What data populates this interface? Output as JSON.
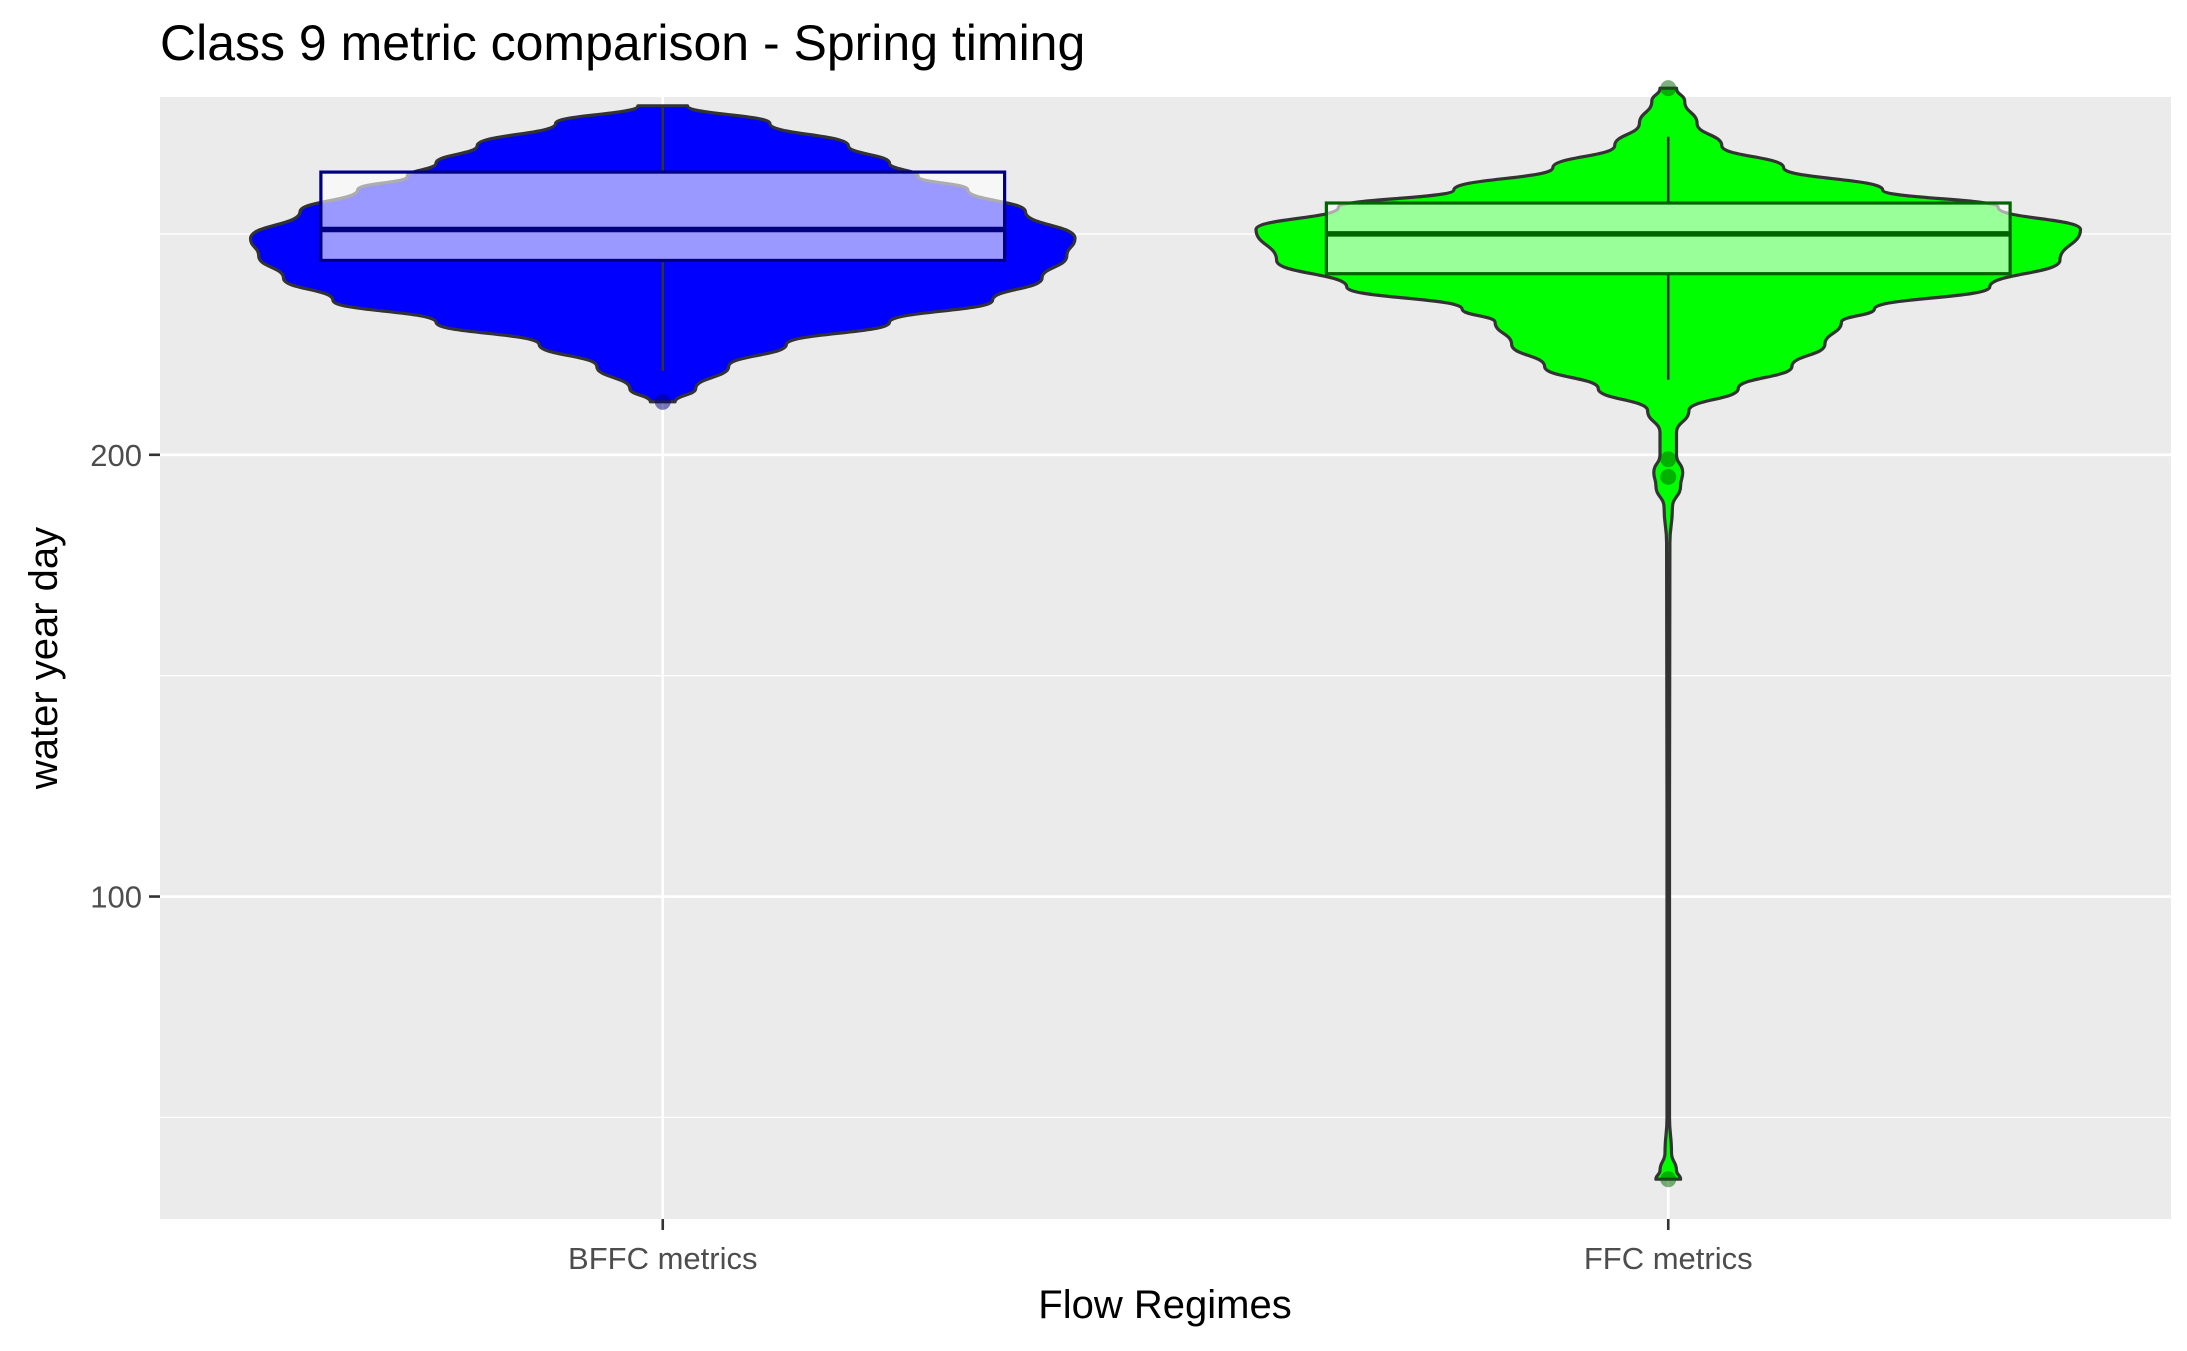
{
  "chart_data": {
    "type": "violin",
    "title": "Class 9 metric comparison - Spring timing",
    "xlabel": "Flow Regimes",
    "ylabel": "water year day",
    "categories": [
      "BFFC metrics",
      "FFC metrics"
    ],
    "ylim": [
      27,
      281
    ],
    "y_ticks": [
      100,
      200
    ],
    "grid": true,
    "legend": "none",
    "series": [
      {
        "category": "BFFC metrics",
        "color": "#0000ff",
        "box_fill": "#9999ff",
        "box_outline": "#000080",
        "box": {
          "q1": 244,
          "median": 251,
          "q3": 264,
          "whisker_low": 219,
          "whisker_high": 279
        },
        "outliers": [
          212
        ],
        "density": [
          [
            212,
            0.03
          ],
          [
            215,
            0.08
          ],
          [
            220,
            0.16
          ],
          [
            225,
            0.3
          ],
          [
            230,
            0.55
          ],
          [
            235,
            0.8
          ],
          [
            240,
            0.92
          ],
          [
            245,
            0.98
          ],
          [
            249,
            1.0
          ],
          [
            255,
            0.88
          ],
          [
            260,
            0.74
          ],
          [
            263,
            0.62
          ],
          [
            266,
            0.55
          ],
          [
            270,
            0.45
          ],
          [
            275,
            0.26
          ],
          [
            279,
            0.06
          ]
        ]
      },
      {
        "category": "FFC metrics",
        "color": "#00ff00",
        "box_fill": "#99ff99",
        "box_outline": "#006400",
        "box": {
          "q1": 241,
          "median": 250,
          "q3": 257,
          "whisker_low": 217,
          "whisker_high": 272
        },
        "outliers": [
          283,
          199,
          195,
          36
        ],
        "density": [
          [
            36,
            0.03
          ],
          [
            38,
            0.02
          ],
          [
            42,
            0.008
          ],
          [
            50,
            0.003
          ],
          [
            120,
            0.003
          ],
          [
            180,
            0.004
          ],
          [
            188,
            0.01
          ],
          [
            193,
            0.03
          ],
          [
            196,
            0.035
          ],
          [
            200,
            0.02
          ],
          [
            205,
            0.02
          ],
          [
            210,
            0.05
          ],
          [
            215,
            0.17
          ],
          [
            220,
            0.3
          ],
          [
            225,
            0.38
          ],
          [
            230,
            0.42
          ],
          [
            233,
            0.5
          ],
          [
            238,
            0.78
          ],
          [
            244,
            0.95
          ],
          [
            251,
            1.0
          ],
          [
            256,
            0.8
          ],
          [
            260,
            0.52
          ],
          [
            265,
            0.28
          ],
          [
            270,
            0.13
          ],
          [
            275,
            0.07
          ],
          [
            280,
            0.04
          ],
          [
            283,
            0.02
          ]
        ]
      }
    ]
  }
}
